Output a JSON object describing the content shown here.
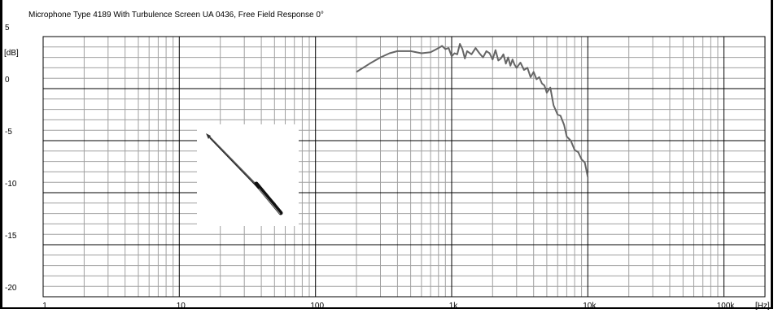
{
  "chart_data": {
    "type": "line",
    "title": "Microphone Type 4189 With Turbulence Screen UA 0436, Free Field Response 0°",
    "xlabel": "[Hz]",
    "ylabel": "[dB]",
    "x_scale": "log",
    "xlim": [
      1,
      200000
    ],
    "ylim": [
      -20,
      5
    ],
    "x_ticks": [
      {
        "value": 1,
        "label": "1"
      },
      {
        "value": 10,
        "label": "10"
      },
      {
        "value": 100,
        "label": "100"
      },
      {
        "value": 1000,
        "label": "1k"
      },
      {
        "value": 10000,
        "label": "10k"
      },
      {
        "value": 100000,
        "label": "100k"
      }
    ],
    "y_ticks": [
      {
        "value": 5,
        "label": "5"
      },
      {
        "value": 0,
        "label": "0"
      },
      {
        "value": -5,
        "label": "-5"
      },
      {
        "value": -10,
        "label": "-10"
      },
      {
        "value": -15,
        "label": "-15"
      },
      {
        "value": -20,
        "label": "-20"
      }
    ],
    "grid": true,
    "legend": "none",
    "line_color": "#666666",
    "series": [
      {
        "x": [
          200,
          250,
          300,
          350,
          400,
          450,
          500,
          600,
          700,
          800,
          850,
          900,
          950,
          1000,
          1050,
          1100,
          1150,
          1200,
          1250,
          1300,
          1400,
          1500,
          1600,
          1700,
          1800,
          1900,
          2000,
          2100,
          2200,
          2300,
          2400,
          2500,
          2600,
          2700,
          2800,
          2900,
          3000,
          3200,
          3400,
          3600,
          3800,
          4000,
          4200,
          4400,
          4600,
          4800,
          5000,
          5300,
          5600,
          6000,
          6300,
          6700,
          7000,
          7500,
          8000,
          8500,
          9000,
          9500,
          10000
        ],
        "y": [
          1.6,
          2.4,
          3.0,
          3.4,
          3.6,
          3.6,
          3.6,
          3.4,
          3.5,
          3.9,
          4.1,
          3.8,
          3.9,
          3.1,
          3.4,
          3.3,
          4.3,
          3.8,
          2.9,
          3.6,
          3.3,
          3.9,
          3.4,
          3.0,
          3.6,
          3.4,
          2.8,
          3.7,
          2.7,
          2.9,
          3.3,
          2.4,
          3.0,
          2.2,
          2.8,
          2.3,
          2.0,
          2.5,
          1.8,
          2.0,
          1.1,
          1.6,
          0.9,
          1.1,
          0.5,
          0.3,
          -0.4,
          0.1,
          -1.6,
          -2.5,
          -2.6,
          -3.5,
          -4.6,
          -5.0,
          -5.9,
          -6.1,
          -6.8,
          -7.1,
          -8.5
        ]
      }
    ]
  },
  "inset": {
    "icon": "microphone-with-turbulence-screen"
  }
}
